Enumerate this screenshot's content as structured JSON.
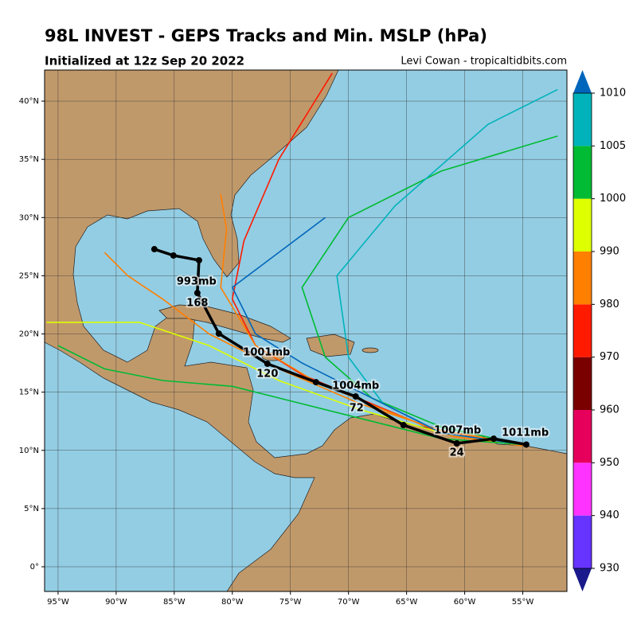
{
  "chart_data": {
    "type": "map",
    "title": "98L INVEST - GEPS Tracks and Min. MSLP (hPa)",
    "subtitle": "Initialized at 12z Sep 20 2022",
    "credit": "Levi Cowan - tropicaltidbits.com",
    "xlim": [
      -96.16,
      -51.2
    ],
    "ylim": [
      -2.12,
      42.67
    ],
    "grid": true,
    "xticks": [
      {
        "value": -95,
        "label": "95°W"
      },
      {
        "value": -90,
        "label": "90°W"
      },
      {
        "value": -85,
        "label": "85°W"
      },
      {
        "value": -80,
        "label": "80°W"
      },
      {
        "value": -75,
        "label": "75°W"
      },
      {
        "value": -70,
        "label": "70°W"
      },
      {
        "value": -65,
        "label": "65°W"
      },
      {
        "value": -60,
        "label": "60°W"
      },
      {
        "value": -55,
        "label": "55°W"
      }
    ],
    "yticks": [
      {
        "value": 0,
        "label": "0°"
      },
      {
        "value": 5,
        "label": "5°N"
      },
      {
        "value": 10,
        "label": "10°N"
      },
      {
        "value": 15,
        "label": "15°N"
      },
      {
        "value": 20,
        "label": "20°N"
      },
      {
        "value": 25,
        "label": "25°N"
      },
      {
        "value": 30,
        "label": "30°N"
      },
      {
        "value": 35,
        "label": "35°N"
      },
      {
        "value": 40,
        "label": "40°N"
      }
    ],
    "members": [
      {
        "color": "#ff1a00",
        "lon": [
          -55,
          -62,
          -68,
          -74,
          -78,
          -80,
          -79,
          -76,
          -71.4
        ],
        "lat": [
          10.6,
          11.5,
          14,
          16.5,
          19,
          23,
          28,
          35,
          42.4
        ]
      },
      {
        "color": "#ff7f00",
        "lon": [
          -55,
          -61,
          -67,
          -73,
          -78,
          -81,
          -80.5,
          -81
        ],
        "lat": [
          10.4,
          11.2,
          13.5,
          16,
          19,
          24,
          29,
          32
        ]
      },
      {
        "color": "#00bb33",
        "lon": [
          -55,
          -62,
          -68,
          -72,
          -74,
          -70,
          -62,
          -52
        ],
        "lat": [
          10.5,
          12,
          14.5,
          18,
          24,
          30,
          34,
          37
        ]
      },
      {
        "color": "#00b3bb",
        "lon": [
          -55,
          -62,
          -67,
          -70,
          -71,
          -66,
          -58,
          -52
        ],
        "lat": [
          10.5,
          11.5,
          14,
          18,
          25,
          31,
          38,
          41
        ]
      },
      {
        "color": "#00bb33",
        "lon": [
          -55,
          -62,
          -68,
          -74,
          -80,
          -86,
          -91,
          -95
        ],
        "lat": [
          10.5,
          11,
          12.5,
          14,
          15.5,
          16,
          17,
          19
        ]
      },
      {
        "color": "#ddff00",
        "lon": [
          -55,
          -62,
          -69,
          -76,
          -82,
          -88,
          -93,
          -96
        ],
        "lat": [
          10.5,
          11.5,
          13.5,
          16,
          19,
          21,
          21,
          21
        ]
      },
      {
        "color": "#ff7f00",
        "lon": [
          -55,
          -62,
          -69,
          -76,
          -82,
          -86,
          -89,
          -91
        ],
        "lat": [
          10.5,
          11.7,
          14,
          17,
          20,
          23,
          25,
          27
        ]
      },
      {
        "color": "#0066bb",
        "lon": [
          -55,
          -62,
          -68,
          -74,
          -78,
          -80,
          -76,
          -72
        ],
        "lat": [
          10.5,
          11.5,
          14.5,
          17.5,
          20,
          24,
          27,
          30
        ]
      }
    ],
    "mean_track": {
      "color": "#000000",
      "lon": [
        -54.7,
        -57.5,
        -60.68,
        -65.27,
        -69.38,
        -72.8,
        -76.98,
        -81.16,
        -83.01,
        -82.87,
        -85.07,
        -86.71
      ],
      "lat": [
        10.5,
        11.0,
        10.6,
        12.17,
        14.63,
        15.86,
        17.44,
        20.03,
        23.52,
        26.33,
        26.74,
        27.28
      ]
    },
    "annotations": [
      {
        "text": "1011mb",
        "lon": -54.79,
        "lat": 11.49
      },
      {
        "text": "1007mb",
        "lon": -60.61,
        "lat": 11.69
      },
      {
        "text": "1004mb",
        "lon": -69.38,
        "lat": 15.52
      },
      {
        "text": "1001mb",
        "lon": -77.05,
        "lat": 18.39
      },
      {
        "text": "993mb",
        "lon": -83.08,
        "lat": 24.48
      },
      {
        "text": "24",
        "lon": -60.68,
        "lat": 9.78
      },
      {
        "text": "72",
        "lon": -69.31,
        "lat": 13.61
      },
      {
        "text": "120",
        "lon": -76.98,
        "lat": 16.55
      },
      {
        "text": "168",
        "lon": -83.01,
        "lat": 22.63
      }
    ],
    "colorbar": {
      "levels": [
        930,
        940,
        950,
        960,
        970,
        980,
        990,
        1000,
        1005,
        1010
      ],
      "colors": [
        "#6633ff",
        "#ff33ff",
        "#e6005c",
        "#7a0000",
        "#ff1a00",
        "#ff7f00",
        "#ddff00",
        "#00bb33",
        "#00b3bb"
      ],
      "under": "#1a1a8c",
      "over": "#0066bb"
    }
  }
}
